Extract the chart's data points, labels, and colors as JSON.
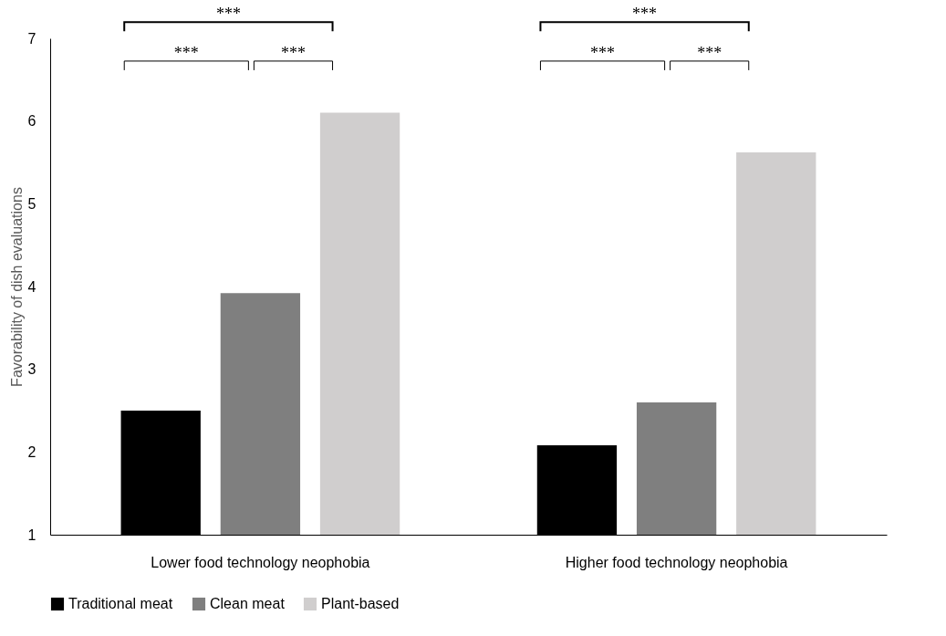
{
  "chart_data": {
    "type": "bar",
    "ylabel": "Favorability of dish evaluations",
    "categories": [
      "Lower food technology neophobia",
      "Higher food technology neophobia"
    ],
    "series": [
      {
        "name": "Traditional meat",
        "color": "#000000",
        "values": [
          2.5,
          2.08
        ]
      },
      {
        "name": "Clean meat",
        "color": "#7f7f7f",
        "values": [
          3.92,
          2.6
        ]
      },
      {
        "name": "Plant-based",
        "color": "#d0cece",
        "values": [
          6.1,
          5.62
        ]
      }
    ],
    "ylim": [
      1,
      7
    ],
    "yticks": [
      1,
      2,
      3,
      4,
      5,
      6,
      7
    ],
    "grid": false,
    "legend": "bottom",
    "annotations": [
      "***",
      "***",
      "***",
      "***",
      "***",
      "***"
    ]
  }
}
